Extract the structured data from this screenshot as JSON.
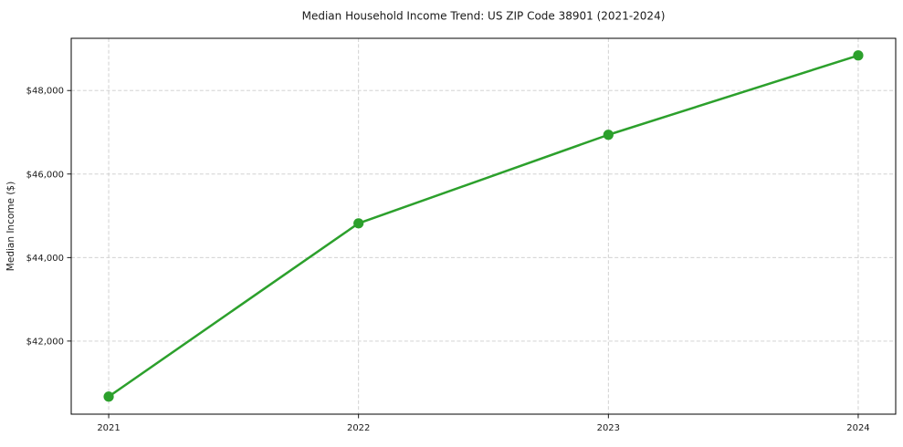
{
  "figure": {
    "background": "#ffffff"
  },
  "chart_data": {
    "type": "line",
    "title": "Median Household Income Trend: US ZIP Code 38901 (2021-2024)",
    "xlabel": "",
    "ylabel": "Median Income ($)",
    "x": [
      2021,
      2022,
      2023,
      2024
    ],
    "x_tick_labels": [
      "2021",
      "2022",
      "2023",
      "2024"
    ],
    "series": [
      {
        "values": [
          40670,
          44820,
          46940,
          48840
        ],
        "color": "#2ca02c",
        "marker": "circle"
      }
    ],
    "y_ticks": [
      42000,
      44000,
      46000,
      48000
    ],
    "y_tick_labels": [
      "$42,000",
      "$44,000",
      "$46,000",
      "$48,000"
    ],
    "xlim": [
      2020.85,
      2024.15
    ],
    "ylim": [
      40250,
      49250
    ],
    "grid": "both-dashed",
    "legend": "none",
    "styles": {
      "line_color": "#2ca02c",
      "grid_color": "#cccccc",
      "axis_color": "#000000",
      "text_color": "#1a1a1a",
      "plot_bg": "#ffffff"
    }
  }
}
